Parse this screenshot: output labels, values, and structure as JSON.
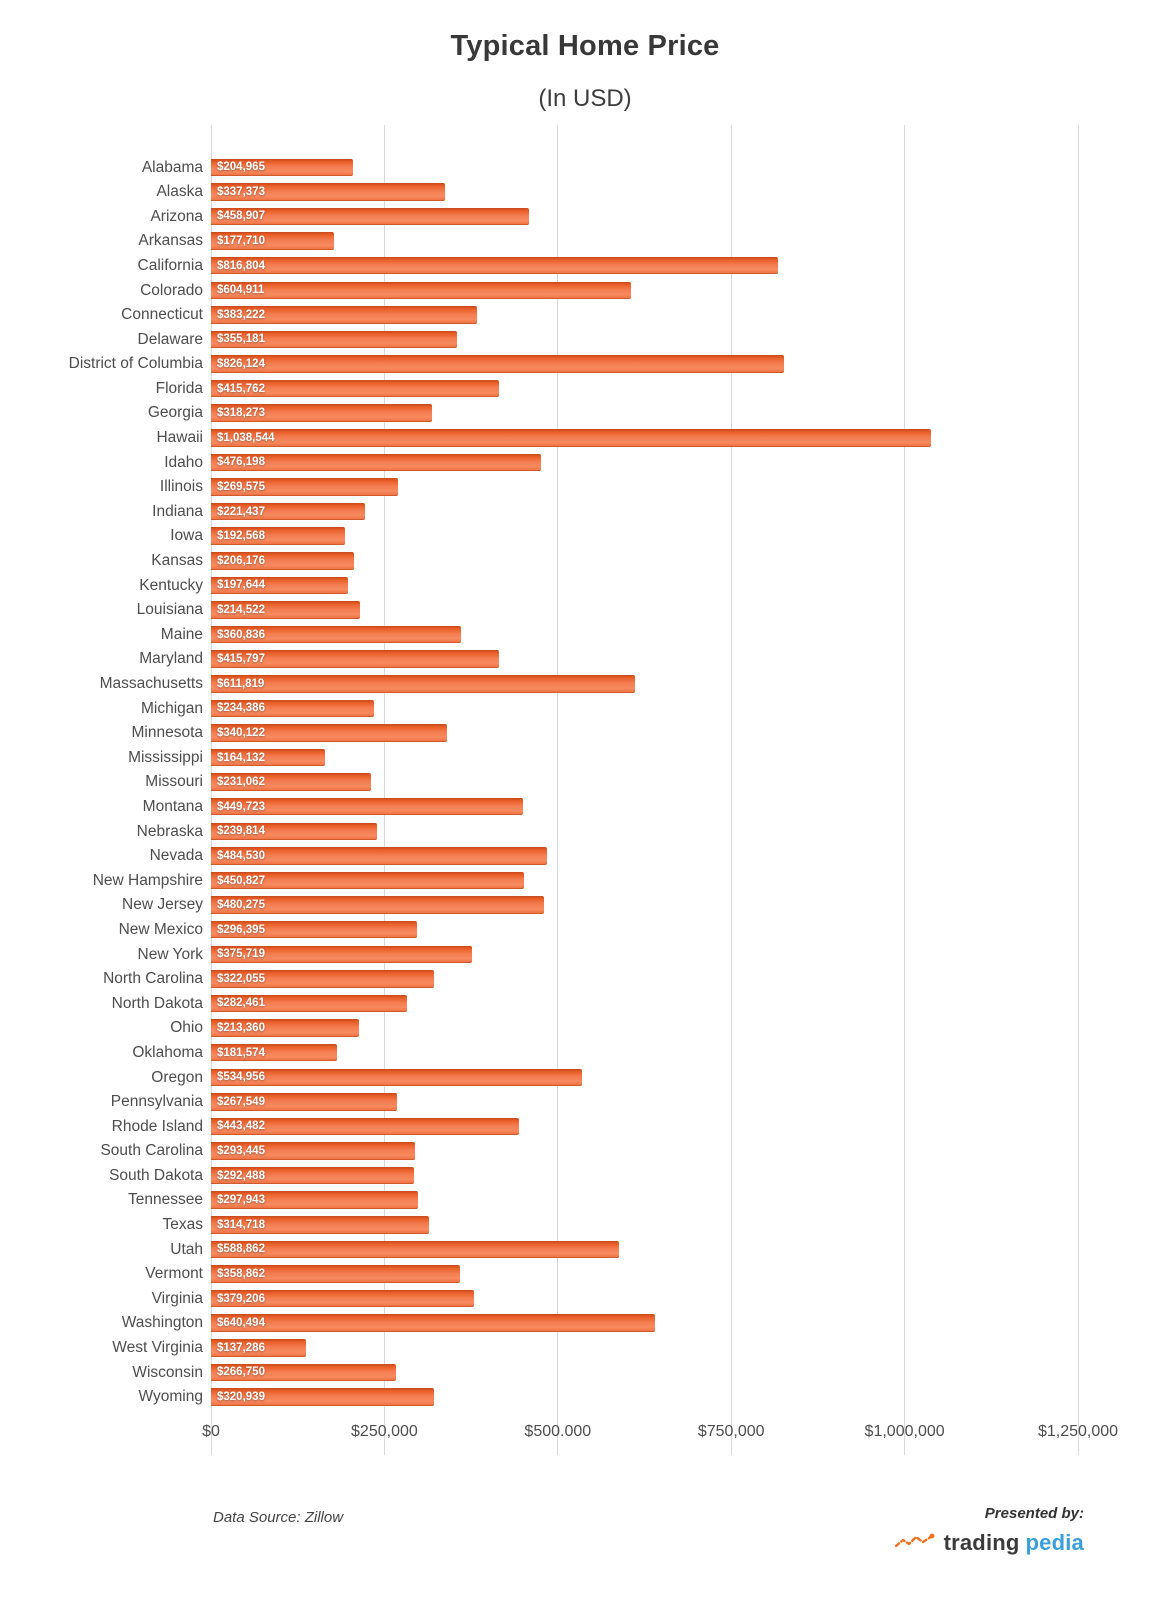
{
  "title": "Typical Home Price",
  "subtitle": "(In USD)",
  "footer": {
    "source": "Data Source: Zillow",
    "presented_by": "Presented by:",
    "brand_trading": "trading",
    "brand_pedia": "pedia"
  },
  "colors": {
    "bar_main": "#f47c50",
    "bar_dark_edge": "#c8491a",
    "grid": "#d9d9d9",
    "axis_text": "#4d4d4d",
    "value_text": "#ffffff",
    "brand_orange": "#f2701f",
    "brand_blue": "#39a0dc"
  },
  "chart_data": {
    "type": "bar",
    "orientation": "horizontal",
    "title": "Typical Home Price",
    "subtitle": "(In USD)",
    "xlabel": "",
    "ylabel": "",
    "xlim": [
      0,
      1250000
    ],
    "grid": true,
    "x_ticks": [
      "$0",
      "$250,000",
      "$500.000",
      "$750,000",
      "$1,000,000",
      "$1,250,000"
    ],
    "x_tick_values": [
      0,
      250000,
      500000,
      750000,
      1000000,
      1250000
    ],
    "categories": [
      "Alabama",
      "Alaska",
      "Arizona",
      "Arkansas",
      "California",
      "Colorado",
      "Connecticut",
      "Delaware",
      "District of Columbia",
      "Florida",
      "Georgia",
      "Hawaii",
      "Idaho",
      "Illinois",
      "Indiana",
      "Iowa",
      "Kansas",
      "Kentucky",
      "Louisiana",
      "Maine",
      "Maryland",
      "Massachusetts",
      "Michigan",
      "Minnesota",
      "Mississippi",
      "Missouri",
      "Montana",
      "Nebraska",
      "Nevada",
      "New Hampshire",
      "New Jersey",
      "New Mexico",
      "New York",
      "North Carolina",
      "North Dakota",
      "Ohio",
      "Oklahoma",
      "Oregon",
      "Pennsylvania",
      "Rhode Island",
      "South Carolina",
      "South Dakota",
      "Tennessee",
      "Texas",
      "Utah",
      "Vermont",
      "Virginia",
      "Washington",
      "West Virginia",
      "Wisconsin",
      "Wyoming"
    ],
    "values": [
      204965,
      337373,
      458907,
      177710,
      816804,
      604911,
      383222,
      355181,
      826124,
      415762,
      318273,
      1038544,
      476198,
      269575,
      221437,
      192568,
      206176,
      197644,
      214522,
      360836,
      415797,
      611819,
      234386,
      340122,
      164132,
      231062,
      449723,
      239814,
      484530,
      450827,
      480275,
      296395,
      375719,
      322055,
      282461,
      213360,
      181574,
      534956,
      267549,
      443482,
      293445,
      292488,
      297943,
      314718,
      588862,
      358862,
      379206,
      640494,
      137286,
      266750,
      320939
    ],
    "value_labels": [
      "$204,965",
      "$337,373",
      "$458,907",
      "$177,710",
      "$816,804",
      "$604,911",
      "$383,222",
      "$355,181",
      "$826,124",
      "$415,762",
      "$318,273",
      "$1,038,544",
      "$476,198",
      "$269,575",
      "$221,437",
      "$192,568",
      "$206,176",
      "$197,644",
      "$214,522",
      "$360,836",
      "$415,797",
      "$611,819",
      "$234,386",
      "$340,122",
      "$164,132",
      "$231,062",
      "$449,723",
      "$239,814",
      "$484,530",
      "$450,827",
      "$480,275",
      "$296,395",
      "$375,719",
      "$322,055",
      "$282,461",
      "$213,360",
      "$181,574",
      "$534,956",
      "$267,549",
      "$443,482",
      "$293,445",
      "$292,488",
      "$297,943",
      "$314,718",
      "$588,862",
      "$358,862",
      "$379,206",
      "$640,494",
      "$137,286",
      "$266,750",
      "$320,939"
    ]
  }
}
